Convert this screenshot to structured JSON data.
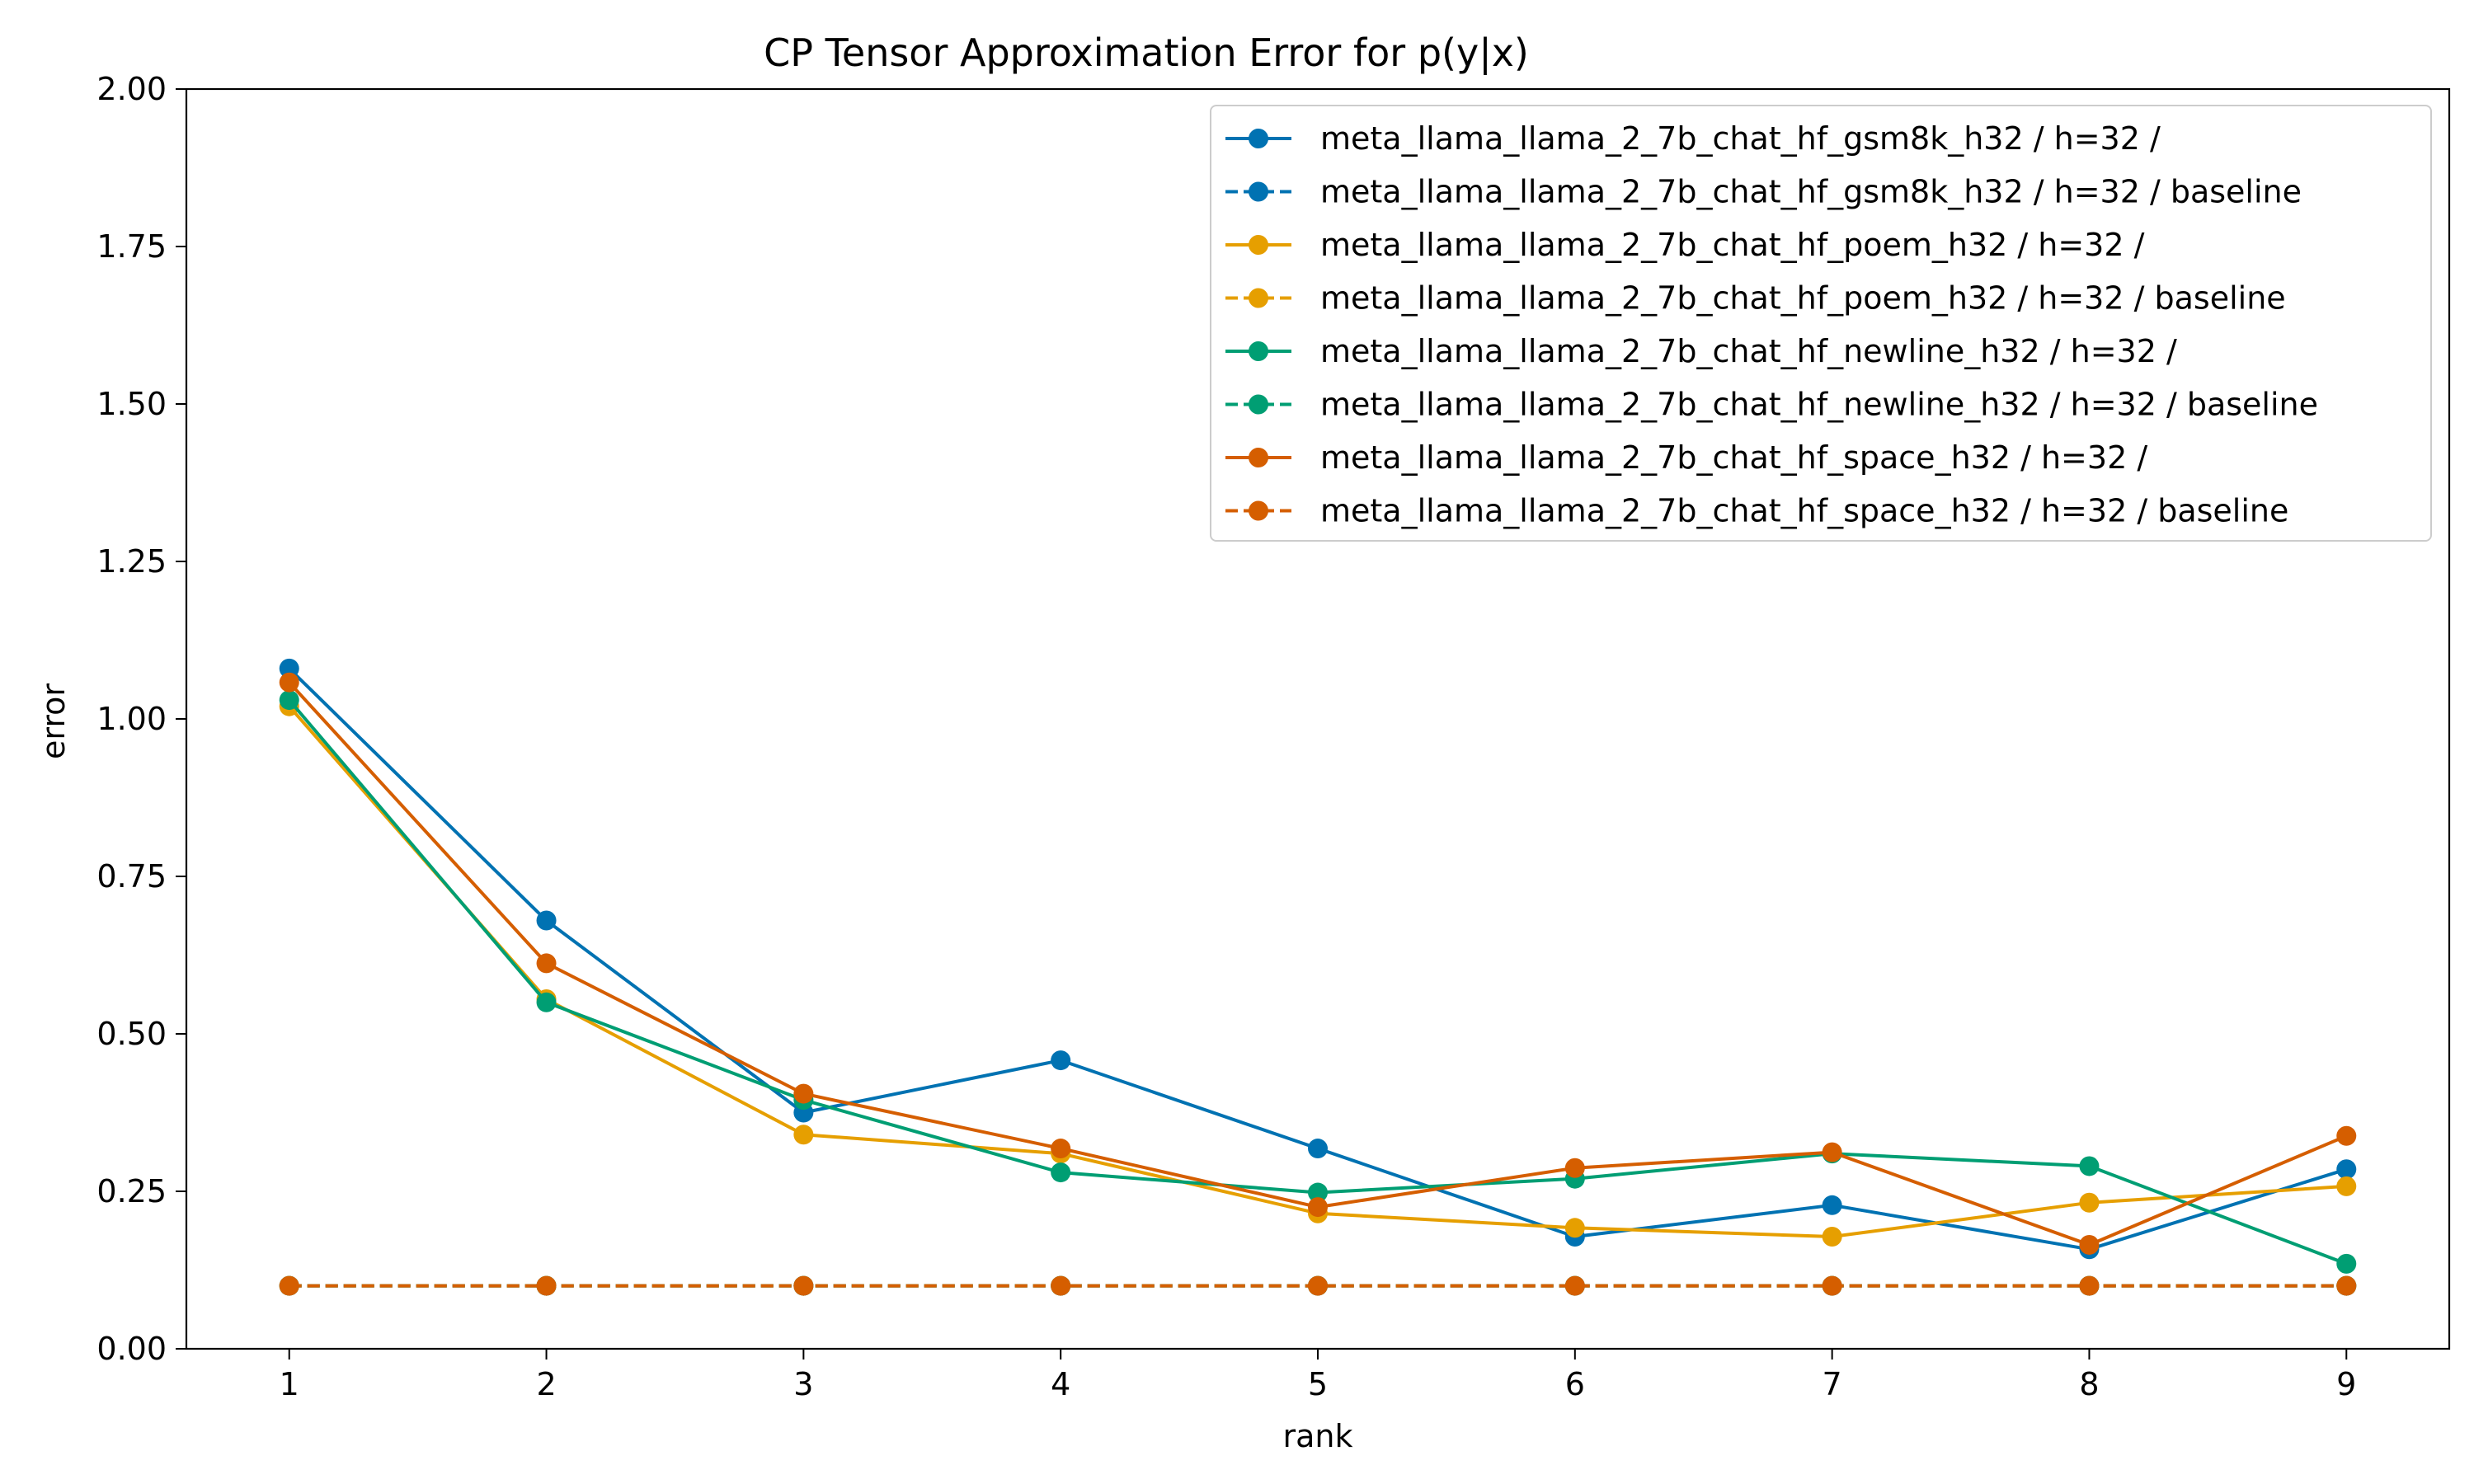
{
  "chart_data": {
    "type": "line",
    "title": "CP Tensor Approximation Error for p(y|x)",
    "xlabel": "rank",
    "ylabel": "error",
    "x": [
      1,
      2,
      3,
      4,
      5,
      6,
      7,
      8,
      9
    ],
    "xlim": [
      0.6,
      9.4
    ],
    "ylim": [
      0.0,
      2.0
    ],
    "xticks": [
      "1",
      "2",
      "3",
      "4",
      "5",
      "6",
      "7",
      "8",
      "9"
    ],
    "yticks": [
      "0.00",
      "0.25",
      "0.50",
      "0.75",
      "1.00",
      "1.25",
      "1.50",
      "1.75",
      "2.00"
    ],
    "grid": false,
    "legend_position": "top-right",
    "series": [
      {
        "name": "meta_llama_llama_2_7b_chat_hf_gsm8k_h32 / h=32 /",
        "color": "#0072B2",
        "dashed": false,
        "values": [
          1.08,
          0.68,
          0.375,
          0.458,
          0.318,
          0.178,
          0.228,
          0.158,
          0.285
        ]
      },
      {
        "name": "meta_llama_llama_2_7b_chat_hf_gsm8k_h32 / h=32 / baseline",
        "color": "#0072B2",
        "dashed": true,
        "values": [
          0.1,
          0.1,
          0.1,
          0.1,
          0.1,
          0.1,
          0.1,
          0.1,
          0.1
        ]
      },
      {
        "name": "meta_llama_llama_2_7b_chat_hf_poem_h32 / h=32 /",
        "color": "#E69F00",
        "dashed": false,
        "values": [
          1.02,
          0.555,
          0.34,
          0.31,
          0.215,
          0.192,
          0.178,
          0.232,
          0.258
        ]
      },
      {
        "name": "meta_llama_llama_2_7b_chat_hf_poem_h32 / h=32 / baseline",
        "color": "#E69F00",
        "dashed": true,
        "values": [
          0.1,
          0.1,
          0.1,
          0.1,
          0.1,
          0.1,
          0.1,
          0.1,
          0.1
        ]
      },
      {
        "name": "meta_llama_llama_2_7b_chat_hf_newline_h32 / h=32 /",
        "color": "#009E73",
        "dashed": false,
        "values": [
          1.03,
          0.55,
          0.395,
          0.28,
          0.248,
          0.27,
          0.31,
          0.29,
          0.135
        ]
      },
      {
        "name": "meta_llama_llama_2_7b_chat_hf_newline_h32 / h=32 / baseline",
        "color": "#009E73",
        "dashed": true,
        "values": [
          0.1,
          0.1,
          0.1,
          0.1,
          0.1,
          0.1,
          0.1,
          0.1,
          0.1
        ]
      },
      {
        "name": "meta_llama_llama_2_7b_chat_hf_space_h32 / h=32 /",
        "color": "#D55E00",
        "dashed": false,
        "values": [
          1.058,
          0.612,
          0.405,
          0.318,
          0.225,
          0.287,
          0.312,
          0.165,
          0.338
        ]
      },
      {
        "name": "meta_llama_llama_2_7b_chat_hf_space_h32 / h=32 / baseline",
        "color": "#D55E00",
        "dashed": true,
        "values": [
          0.1,
          0.1,
          0.1,
          0.1,
          0.1,
          0.1,
          0.1,
          0.1,
          0.1
        ]
      }
    ]
  }
}
